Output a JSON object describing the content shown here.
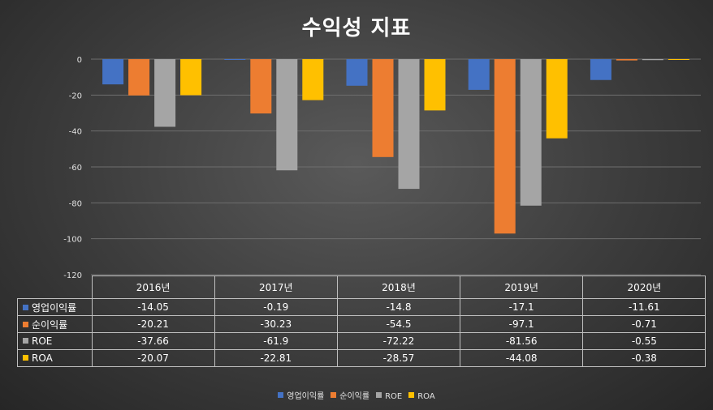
{
  "chart_data": {
    "type": "bar",
    "title": "수익성 지표",
    "categories": [
      "2016년",
      "2017년",
      "2018년",
      "2019년",
      "2020년"
    ],
    "series": [
      {
        "name": "영업이익률",
        "color": "#4472c4",
        "values": [
          -14.05,
          -0.19,
          -14.8,
          -17.1,
          -11.61
        ],
        "labels": [
          "-14.05",
          "-0.19",
          "-14.8",
          "-17.1",
          "-11.61"
        ]
      },
      {
        "name": "순이익률",
        "color": "#ed7d31",
        "values": [
          -20.21,
          -30.23,
          -54.5,
          -97.1,
          -0.71
        ],
        "labels": [
          "-20.21",
          "-30.23",
          "-54.5",
          "-97.1",
          "-0.71"
        ]
      },
      {
        "name": "ROE",
        "color": "#a5a5a5",
        "values": [
          -37.66,
          -61.9,
          -72.22,
          -81.56,
          -0.55
        ],
        "labels": [
          "-37.66",
          "-61.9",
          "-72.22",
          "-81.56",
          "-0.55"
        ]
      },
      {
        "name": "ROA",
        "color": "#ffc000",
        "values": [
          -20.07,
          -22.81,
          -28.57,
          -44.08,
          -0.38
        ],
        "labels": [
          "-20.07",
          "-22.81",
          "-28.57",
          "-44.08",
          "-0.38"
        ]
      }
    ],
    "ylim": [
      -120,
      0
    ],
    "yticks": [
      0,
      -20,
      -40,
      -60,
      -80,
      -100,
      -120
    ],
    "grid": true,
    "legend": "bottom",
    "data_table": true
  }
}
